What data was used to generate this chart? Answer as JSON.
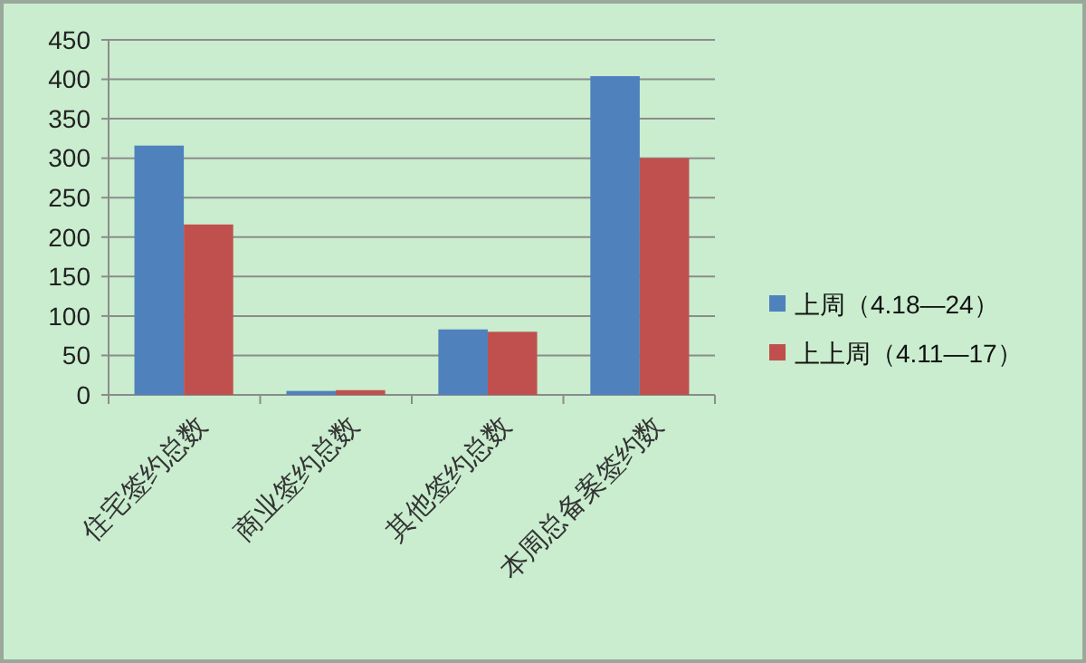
{
  "chart_data": {
    "type": "bar",
    "categories": [
      "住宅签约总数",
      "商业签约总数",
      "其他签约总数",
      "本周总备案签约数"
    ],
    "series": [
      {
        "name": "上周（4.18—24）",
        "color": "#4f81bd",
        "values": [
          316,
          5,
          83,
          404
        ]
      },
      {
        "name": "上上周（4.11—17）",
        "color": "#c0504d",
        "values": [
          216,
          6,
          80,
          300
        ]
      }
    ],
    "ylim": [
      0,
      450
    ],
    "yticks": [
      0,
      50,
      100,
      150,
      200,
      250,
      300,
      350,
      400,
      450
    ],
    "grid": "y",
    "legend": "right"
  }
}
